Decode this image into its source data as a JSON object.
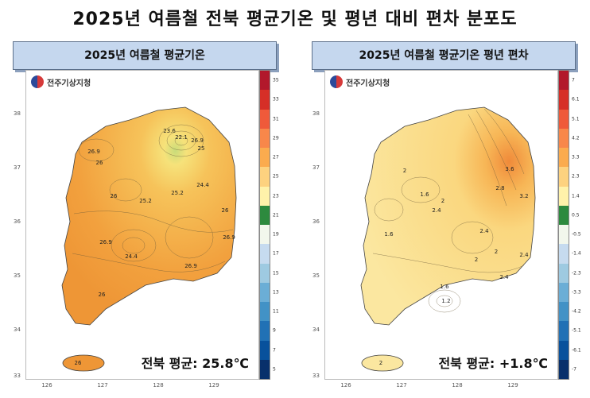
{
  "header": {
    "title": "2025년 여름철 전북 평균기온 및 평년 대비 편차 분포도"
  },
  "left_panel": {
    "title": "2025년 여름철 평균기온",
    "logo_text": "전주기상지청",
    "avg_text": "전북 평균: 25.8℃",
    "legend_labels": [
      "35",
      "33",
      "31",
      "29",
      "27",
      "25",
      "23",
      "21",
      "19",
      "17",
      "15",
      "13",
      "11",
      "9",
      "7",
      "5"
    ],
    "legend_colors": [
      "#b2182b",
      "#d62f27",
      "#ef5a3a",
      "#f8874a",
      "#fbab4e",
      "#fdd27f",
      "#fff2aa",
      "#2d8a3e",
      "#f2f7ec",
      "#c6dbef",
      "#9ecae1",
      "#6baed6",
      "#4292c6",
      "#2171b5",
      "#08519c",
      "#08306b"
    ],
    "contour_labels": [
      "23.6",
      "22.1",
      "26.9",
      "25",
      "26.9",
      "26",
      "26",
      "25.2",
      "25.2",
      "24.4",
      "26",
      "26.9",
      "24.4",
      "26.9",
      "26.9",
      "26",
      "26"
    ]
  },
  "right_panel": {
    "title": "2025년 여름철 평균기온 평년 편차",
    "logo_text": "전주기상지청",
    "avg_text": "전북 평균: +1.8℃",
    "legend_labels": [
      "7",
      "6.1",
      "5.1",
      "4.2",
      "3.3",
      "2.3",
      "1.4",
      "0.5",
      "-0.5",
      "-1.4",
      "-2.3",
      "-3.3",
      "-4.2",
      "-5.1",
      "-6.1",
      "-7"
    ],
    "legend_colors": [
      "#b2182b",
      "#d62f27",
      "#ef5a3a",
      "#f8874a",
      "#fbab4e",
      "#fdd27f",
      "#fff2aa",
      "#2d8a3e",
      "#f2f7ec",
      "#c6dbef",
      "#9ecae1",
      "#6baed6",
      "#4292c6",
      "#2171b5",
      "#08519c",
      "#08306b"
    ],
    "contour_labels": [
      "3.6",
      "2.8",
      "3.2",
      "2",
      "1.6",
      "2",
      "2.4",
      "1.6",
      "2.4",
      "2.4",
      "2",
      "1.6",
      "1.2",
      "2",
      "2.4",
      "2"
    ]
  },
  "axes": {
    "lat_ticks": [
      "38",
      "37",
      "36",
      "35",
      "34",
      "33"
    ],
    "lon_ticks": [
      "126",
      "127",
      "128",
      "129"
    ]
  }
}
